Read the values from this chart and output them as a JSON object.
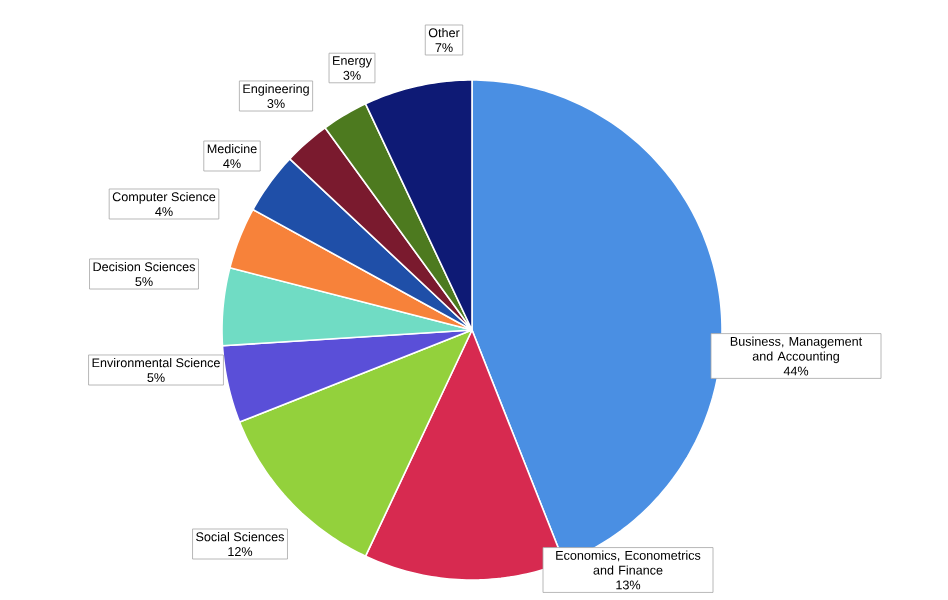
{
  "chart_data": {
    "type": "pie",
    "categories": [
      "Business, Management and Accounting",
      "Economics, Econometrics and Finance",
      "Social Sciences",
      "Environmental Science",
      "Decision Sciences",
      "Computer Science",
      "Medicine",
      "Engineering",
      "Energy",
      "Other"
    ],
    "values": [
      44,
      13,
      12,
      5,
      5,
      4,
      4,
      3,
      3,
      7
    ],
    "value_labels": [
      "44%",
      "13%",
      "12%",
      "5%",
      "5%",
      "4%",
      "4%",
      "3%",
      "3%",
      "7%"
    ],
    "colors": [
      "#4a8fe3",
      "#d72a50",
      "#93d13c",
      "#5a4fd8",
      "#70dcc4",
      "#f7823a",
      "#1f4fa8",
      "#7a1a2e",
      "#4d7a1f",
      "#0e1a75"
    ]
  }
}
